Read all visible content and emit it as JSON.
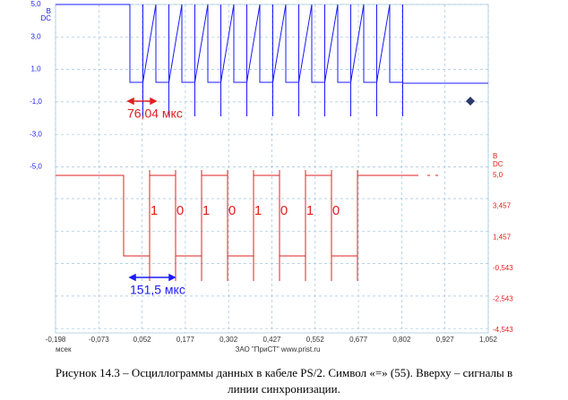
{
  "scope": {
    "top_channel": {
      "unit": "B",
      "coupling": "DC",
      "ticks": [
        "5,0",
        "3,0",
        "1,0",
        "-1,0",
        "-3,0",
        "-5,0"
      ]
    },
    "bottom_channel": {
      "unit": "B",
      "coupling": "DC",
      "ticks": [
        "5,0",
        "3,457",
        "1,457",
        "-0,543",
        "-2,543",
        "-4,543"
      ]
    },
    "x_ticks": [
      "-0,198",
      "-0,073",
      "0,052",
      "0,177",
      "0,302",
      "0,427",
      "0,552",
      "0,677",
      "0,802",
      "0,927",
      "1,052"
    ],
    "x_unit": "мсек",
    "footer": "ЗАО \"ПриСТ\"   www.prist.ru",
    "clock_label": "76,04 мкс",
    "data_label": "151,5 мкс",
    "bits": [
      "1",
      "0",
      "1",
      "0",
      "1",
      "0",
      "1",
      "0"
    ]
  },
  "caption": [
    "Рисунок 14.3 – Осциллограммы  данных в кабеле PS/2. Символ «=» (55). Вверху – сигналы в",
    "линии синхронизации."
  ]
}
